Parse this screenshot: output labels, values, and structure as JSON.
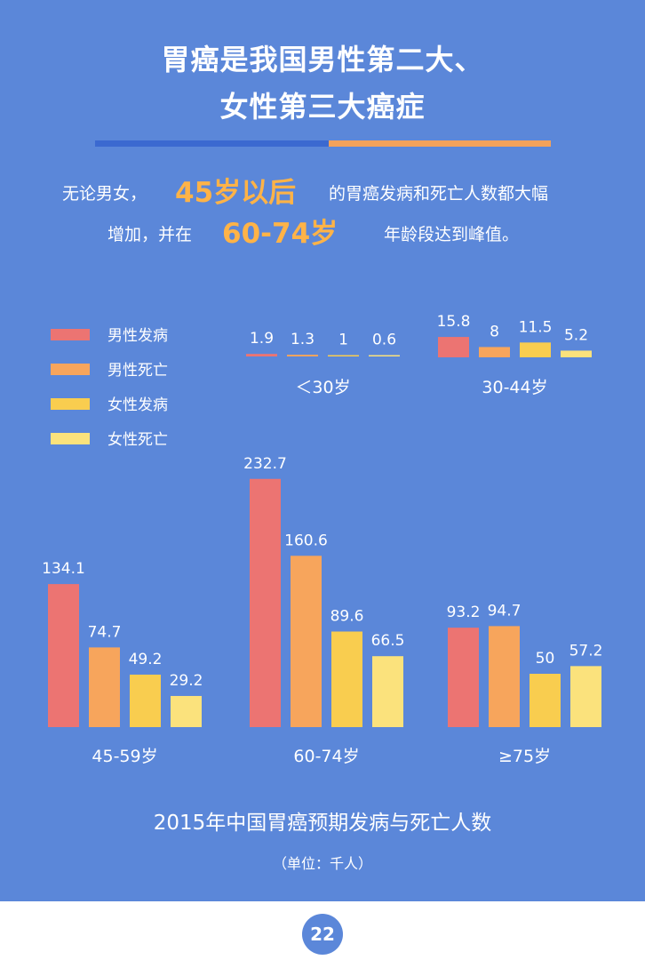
{
  "header": {
    "title_line1": "胃癌是我国男性第二大、",
    "title_line2": "女性第三大癌症"
  },
  "summary": {
    "part1": "无论男女，",
    "highlight1": "45岁以后",
    "part2": "的胃癌发病和死亡人数都大幅",
    "part3": "增加，并在",
    "highlight2": "60-74岁",
    "part4": "年龄段达到峰值。"
  },
  "legend": [
    {
      "label": "男性发病",
      "color": "#ec7472"
    },
    {
      "label": "男性死亡",
      "color": "#f7a55c"
    },
    {
      "label": "女性发病",
      "color": "#f9cd4f"
    },
    {
      "label": "女性死亡",
      "color": "#fbe27c"
    }
  ],
  "chart_data": {
    "type": "bar",
    "title": "2015年中国胃癌预期发病与死亡人数",
    "unit": "（单位：千人）",
    "categories": [
      "＜30岁",
      "30-44岁",
      "45-59岁",
      "60-74岁",
      "≥75岁"
    ],
    "series": [
      {
        "name": "男性发病",
        "values": [
          1.9,
          15.8,
          134.1,
          232.7,
          93.2
        ]
      },
      {
        "name": "男性死亡",
        "values": [
          1.3,
          8,
          74.7,
          160.6,
          94.7
        ]
      },
      {
        "name": "女性发病",
        "values": [
          1,
          11.5,
          49.2,
          89.6,
          50
        ]
      },
      {
        "name": "女性死亡",
        "values": [
          0.6,
          5.2,
          29.2,
          66.5,
          57.2
        ]
      }
    ],
    "value_labels": [
      [
        "1.9",
        "1.3",
        "1",
        "0.6"
      ],
      [
        "15.8",
        "8",
        "11.5",
        "5.2"
      ],
      [
        "134.1",
        "74.7",
        "49.2",
        "29.2"
      ],
      [
        "232.7",
        "160.6",
        "89.6",
        "66.5"
      ],
      [
        "93.2",
        "94.7",
        "50",
        "57.2"
      ]
    ],
    "colors": [
      "#ec7472",
      "#f7a55c",
      "#f9cd4f",
      "#fbe27c"
    ]
  },
  "page_number": "22"
}
